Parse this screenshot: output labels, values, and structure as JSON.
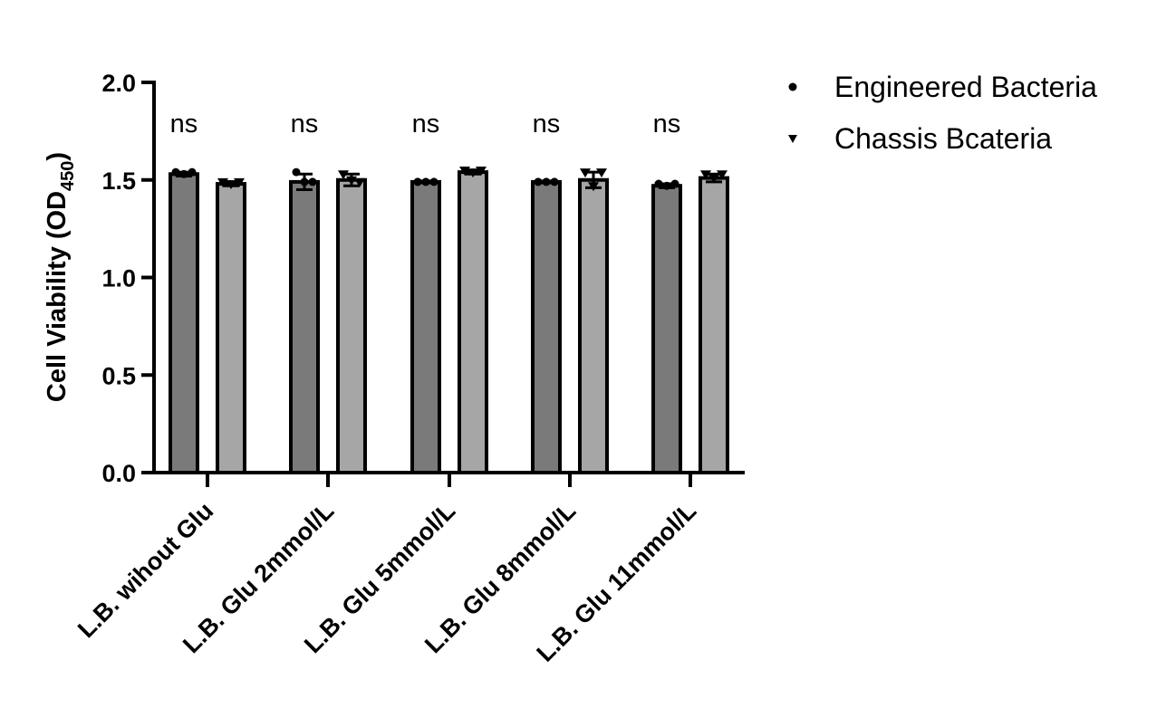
{
  "chart_data": {
    "type": "bar",
    "ylabel_main": "Cell Viability (OD",
    "ylabel_sub": "450",
    "ylabel_close": ")",
    "ylim": [
      0,
      2.0
    ],
    "yticks": [
      "0.0",
      "0.5",
      "1.0",
      "1.5",
      "2.0"
    ],
    "ytick_values": [
      0,
      0.5,
      1.0,
      1.5,
      2.0
    ],
    "categories": [
      "L.B. wihout Glu",
      "L.B. Glu 2mmol/L",
      "L.B. Glu 5mmol/L",
      "L.B. Glu 8mmol/L",
      "L.B. Glu 11mmol/L"
    ],
    "series": [
      {
        "name": "Engineered Bacteria",
        "marker": "circle",
        "color": "#7a7a7a",
        "values": [
          1.53,
          1.49,
          1.49,
          1.49,
          1.47
        ],
        "errors": [
          0.01,
          0.04,
          0.005,
          0.005,
          0.01
        ],
        "points": [
          [
            1.54,
            1.53,
            1.54
          ],
          [
            1.54,
            1.49,
            1.49
          ],
          [
            1.49,
            1.49,
            1.49
          ],
          [
            1.49,
            1.49,
            1.49
          ],
          [
            1.48,
            1.47,
            1.48
          ]
        ]
      },
      {
        "name": "Chassis Bcateria",
        "marker": "triangle-down",
        "color": "#a6a6a6",
        "values": [
          1.48,
          1.5,
          1.54,
          1.5,
          1.51
        ],
        "errors": [
          0.01,
          0.03,
          0.01,
          0.04,
          0.02
        ],
        "points": [
          [
            1.49,
            1.48,
            1.49
          ],
          [
            1.53,
            1.5,
            1.49
          ],
          [
            1.55,
            1.54,
            1.55
          ],
          [
            1.54,
            1.47,
            1.54
          ],
          [
            1.53,
            1.51,
            1.53
          ]
        ]
      }
    ],
    "significance": [
      "ns",
      "ns",
      "ns",
      "ns",
      "ns"
    ],
    "legend_position": "top-right"
  }
}
